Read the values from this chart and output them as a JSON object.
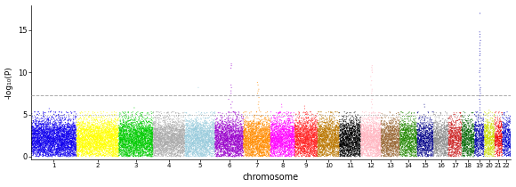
{
  "title": "",
  "xlabel": "chromosome",
  "ylabel": "-log₁₀(P)",
  "ylim": [
    -0.3,
    18
  ],
  "yticks": [
    0,
    5,
    10,
    15
  ],
  "threshold_genome": 7.3,
  "threshold_suggestive": 5.0,
  "chr_colors": [
    "#1000EE",
    "#FFFF00",
    "#00CC00",
    "#AAAAAA",
    "#99CCDD",
    "#9900CC",
    "#FF8C00",
    "#FF00FF",
    "#FF2222",
    "#BB7700",
    "#000000",
    "#FFB6C1",
    "#996633",
    "#228800",
    "#000088",
    "#888888",
    "#CC2222",
    "#006400",
    "#0000AA",
    "#CCDD00",
    "#EE0000",
    "#0000CC"
  ],
  "chr_widths": [
    280,
    260,
    210,
    195,
    185,
    175,
    165,
    150,
    140,
    135,
    130,
    125,
    115,
    107,
    100,
    92,
    82,
    78,
    60,
    64,
    47,
    51
  ],
  "n_snps_per_chr": [
    3500,
    2900,
    2500,
    2200,
    2000,
    1900,
    1800,
    1700,
    1600,
    1500,
    1500,
    1400,
    1200,
    1000,
    900,
    820,
    750,
    700,
    520,
    560,
    380,
    430
  ],
  "seed": 12345,
  "figsize": [
    5.8,
    2.1
  ],
  "dpi": 100,
  "point_size": 0.5,
  "background_color": "#ffffff",
  "threshold_genome_color": "#AAAAAA",
  "threshold_suggestive_color": "#AAAAAA",
  "peaks": {
    "6": {
      "vals": [
        10.5,
        10.8,
        11.0,
        8.5,
        8.2,
        7.8,
        7.5,
        7.2,
        6.8,
        6.5,
        6.2,
        5.8
      ]
    },
    "7": {
      "vals": [
        8.8,
        8.5,
        8.0,
        7.8,
        7.5,
        7.0,
        6.5,
        6.2,
        5.8,
        5.5
      ]
    },
    "12": {
      "vals": [
        10.8,
        10.6,
        10.4,
        10.2,
        10.0,
        9.5,
        9.0,
        8.5,
        8.0,
        7.8,
        7.5,
        7.2,
        6.8,
        6.5,
        6.2,
        5.8
      ]
    },
    "19": {
      "vals": [
        17.0,
        14.8,
        14.5,
        14.2,
        13.8,
        13.5,
        13.2,
        12.8,
        12.5,
        12.2,
        12.0,
        11.5,
        11.0,
        10.5,
        10.2,
        10.0,
        9.5,
        9.0,
        8.5,
        8.2,
        8.0,
        7.8,
        7.5,
        7.2,
        6.8,
        6.5,
        6.2,
        5.8,
        5.5
      ]
    }
  },
  "small_peaks": {
    "5": {
      "max_val": 8.2,
      "n": 1
    },
    "1": {
      "max_val": 5.7,
      "n": 2
    },
    "3": {
      "max_val": 5.8,
      "n": 1
    },
    "8": {
      "max_val": 6.2,
      "n": 2
    },
    "9": {
      "max_val": 6.0,
      "n": 2
    },
    "15": {
      "max_val": 6.2,
      "n": 2
    },
    "20": {
      "max_val": 5.5,
      "n": 2
    }
  }
}
